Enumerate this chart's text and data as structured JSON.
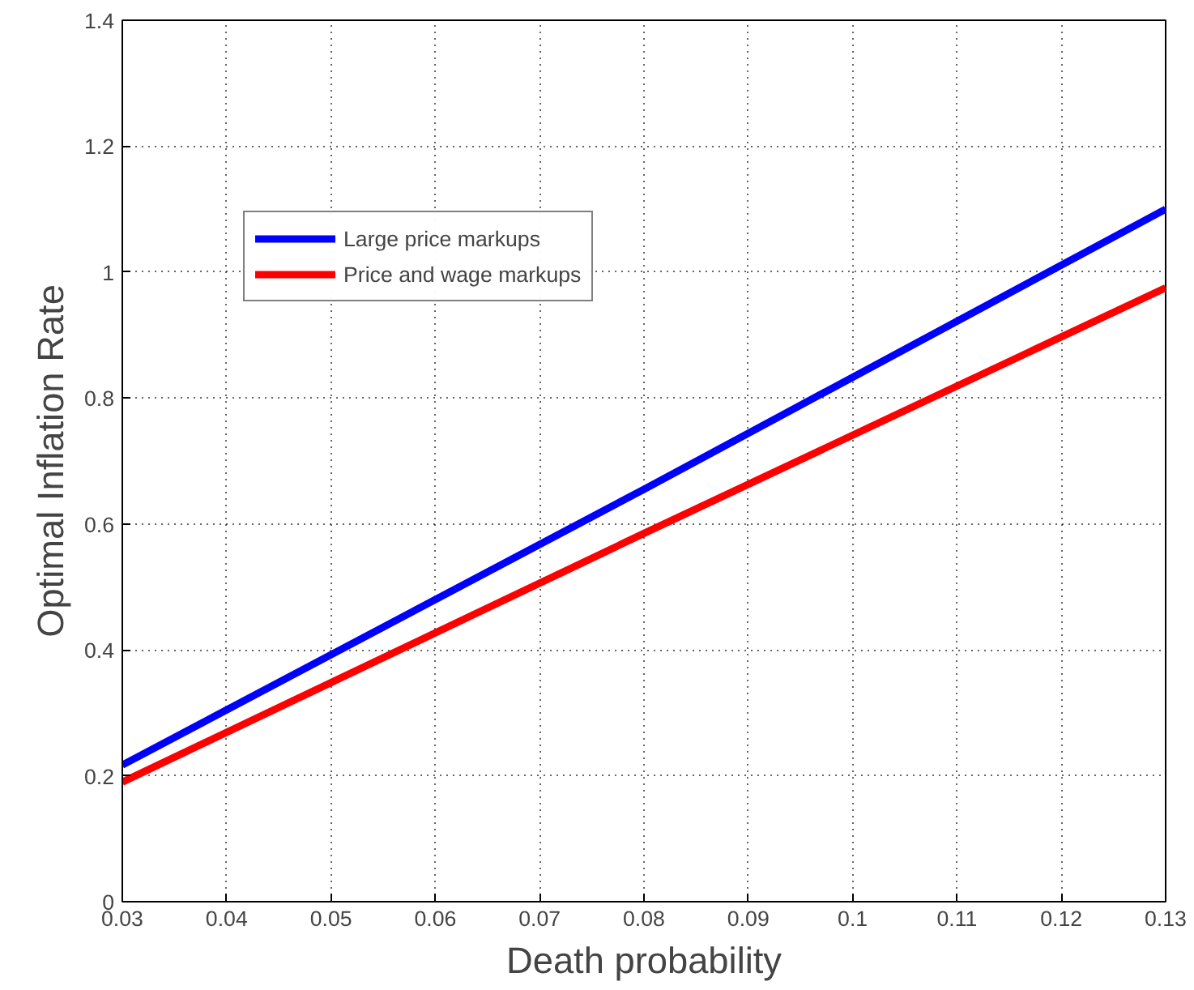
{
  "chart_data": {
    "type": "line",
    "xlabel": "Death probability",
    "ylabel": "Optimal Inflation Rate",
    "series": [
      {
        "name": "Large price markups",
        "color": "#0000ff",
        "x": [
          0.03,
          0.08,
          0.13
        ],
        "values": [
          0.217,
          0.655,
          1.1
        ]
      },
      {
        "name": "Price and wage markups",
        "color": "#ff0000",
        "x": [
          0.03,
          0.08,
          0.13
        ],
        "values": [
          0.19,
          0.585,
          0.975
        ]
      }
    ],
    "xlim": [
      0.03,
      0.13
    ],
    "xticks": [
      0.03,
      0.04,
      0.05,
      0.06,
      0.07,
      0.08,
      0.09,
      0.1,
      0.11,
      0.12,
      0.13
    ],
    "ylim": [
      0,
      1.4
    ],
    "yticks": [
      0,
      0.2,
      0.4,
      0.6,
      0.8,
      1,
      1.2,
      1.4
    ],
    "grid": true,
    "legend": "top left",
    "line_style": "solid",
    "marker": "none"
  }
}
